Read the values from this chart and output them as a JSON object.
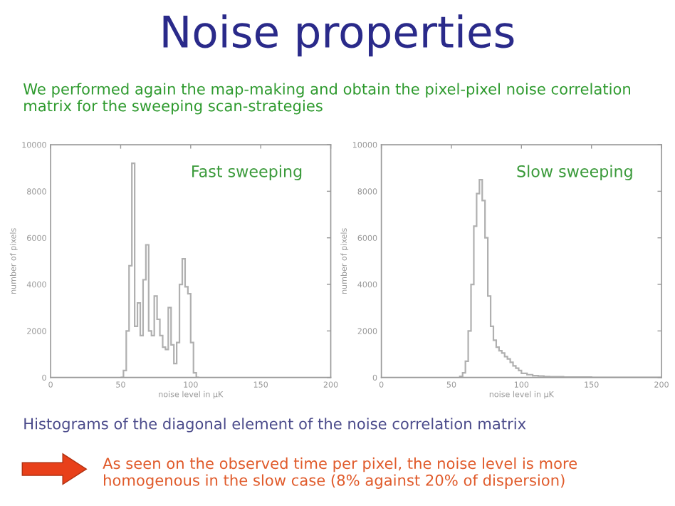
{
  "chart_data": [
    {
      "type": "histogram",
      "title": "Noise properties",
      "subtitle": "We performed again the map-making and obtain the pixel-pixel noise correlation matrix for the sweeping scan-strategies",
      "xlabel": "noise level in μK",
      "ylabel": "number of pixels",
      "color": "#b0b0b0",
      "bins": [
        50,
        52,
        54,
        56,
        58,
        60,
        62,
        64,
        66,
        68,
        70,
        72,
        74,
        76,
        78,
        80,
        82,
        84,
        86,
        88,
        90,
        92,
        94,
        96,
        98,
        100,
        102,
        104,
        106
      ],
      "values": [
        0,
        300,
        2000,
        4800,
        9200,
        2200,
        3200,
        1800,
        4200,
        5700,
        2000,
        1800,
        3500,
        2500,
        1800,
        1300,
        1200,
        3000,
        1400,
        600,
        1500,
        4000,
        5100,
        3900,
        3600,
        1500,
        200,
        0
      ],
      "xlim": [
        0,
        200
      ],
      "xticks": [
        0,
        50,
        100,
        150,
        200
      ],
      "ylim": [
        0,
        10000
      ],
      "yticks": [
        0,
        2000,
        4000,
        6000,
        8000,
        10000
      ],
      "annotations": [
        "Fast sweeping",
        "Histograms of the diagonal element of the noise correlation matrix",
        "As seen on the observed time per pixel, the noise level is more homogenous in the slow case (8% against 20% of dispersion)"
      ]
    },
    {
      "type": "histogram",
      "xlabel": "noise level in μK",
      "ylabel": "number of pixels",
      "color": "#b0b0b0",
      "bins": [
        56,
        58,
        60,
        62,
        64,
        66,
        68,
        70,
        72,
        74,
        76,
        78,
        80,
        82,
        84,
        86,
        88,
        90,
        92,
        94,
        96,
        98,
        100,
        104,
        108,
        112,
        116,
        120,
        130,
        150,
        200
      ],
      "values": [
        50,
        200,
        700,
        2000,
        4000,
        6500,
        7900,
        8500,
        7600,
        6000,
        3500,
        2200,
        1600,
        1300,
        1150,
        1050,
        900,
        800,
        650,
        500,
        400,
        300,
        180,
        120,
        80,
        60,
        40,
        30,
        15,
        0
      ],
      "xlim": [
        0,
        200
      ],
      "xticks": [
        0,
        50,
        100,
        150,
        200
      ],
      "ylim": [
        0,
        10000
      ],
      "yticks": [
        0,
        2000,
        4000,
        6000,
        8000,
        10000
      ],
      "annotations": [
        "Slow sweeping"
      ]
    }
  ]
}
